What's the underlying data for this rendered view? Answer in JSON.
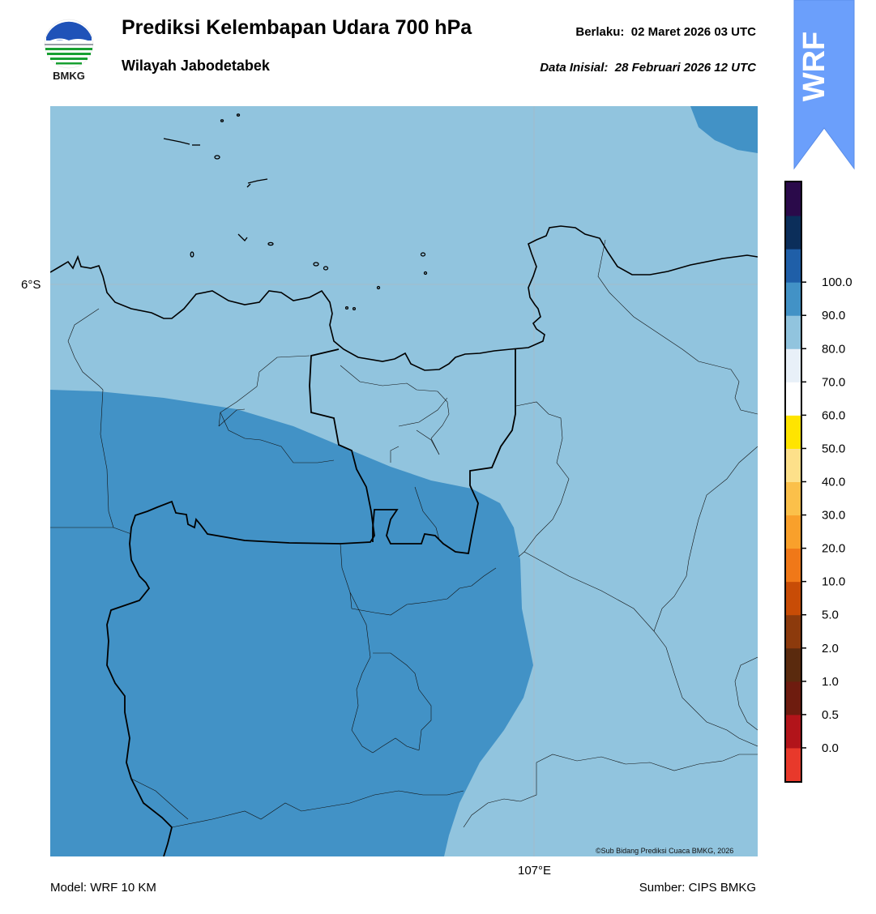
{
  "header": {
    "title": "Prediksi Kelembapan Udara 700 hPa",
    "subtitle": "Wilayah Jabodetabek",
    "valid_label": "Berlaku:",
    "valid_value": "02 Maret 2026 03 UTC",
    "initial_label": "Data Inisial:",
    "initial_value": "28 Februari 2026 12 UTC"
  },
  "logo": {
    "text": "BMKG",
    "icon": "bmkg-logo"
  },
  "badge": {
    "text": "WRF",
    "color": "#6b9ffb"
  },
  "map": {
    "lat_label": "6°S",
    "lon_label": "107°E",
    "credit": "©Sub Bidang Prediksi Cuaca BMKG, 2026",
    "fill_light": "#91c4de",
    "fill_dark": "#4292c6",
    "fill_darkest_corner": "#4292c6"
  },
  "legend": {
    "ticks": [
      "0.0",
      "0.5",
      "1.0",
      "2.0",
      "5.0",
      "10.0",
      "20.0",
      "30.0",
      "40.0",
      "50.0",
      "60.0",
      "70.0",
      "80.0",
      "90.0",
      "100.0"
    ],
    "colors": [
      "#e8392b",
      "#b2141a",
      "#6e1c0f",
      "#5a2a0e",
      "#8c3a0c",
      "#c84c06",
      "#f07818",
      "#f9a02b",
      "#fbc04a",
      "#fde08a",
      "#ffe400",
      "#ffffff",
      "#e8f0f8",
      "#91c4de",
      "#4292c6",
      "#1f5fa8",
      "#0b2e5a",
      "#2a0a4a"
    ]
  },
  "footer": {
    "model": "Model: WRF 10 KM",
    "source": "Sumber: CIPS BMKG"
  }
}
